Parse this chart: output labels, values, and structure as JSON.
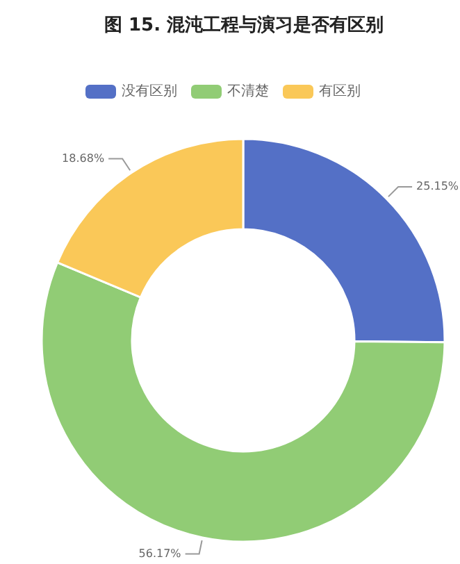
{
  "chart_data": {
    "type": "donut",
    "title": "图 15. 混沌工程与演习是否有区别",
    "categories": [
      "没有区别",
      "不清楚",
      "有区别"
    ],
    "values": [
      25.15,
      56.17,
      18.68
    ],
    "value_labels": [
      "25.15%",
      "56.17%",
      "18.68%"
    ],
    "colors": [
      "#5470c6",
      "#91cc75",
      "#fac858"
    ],
    "legend": "top"
  }
}
